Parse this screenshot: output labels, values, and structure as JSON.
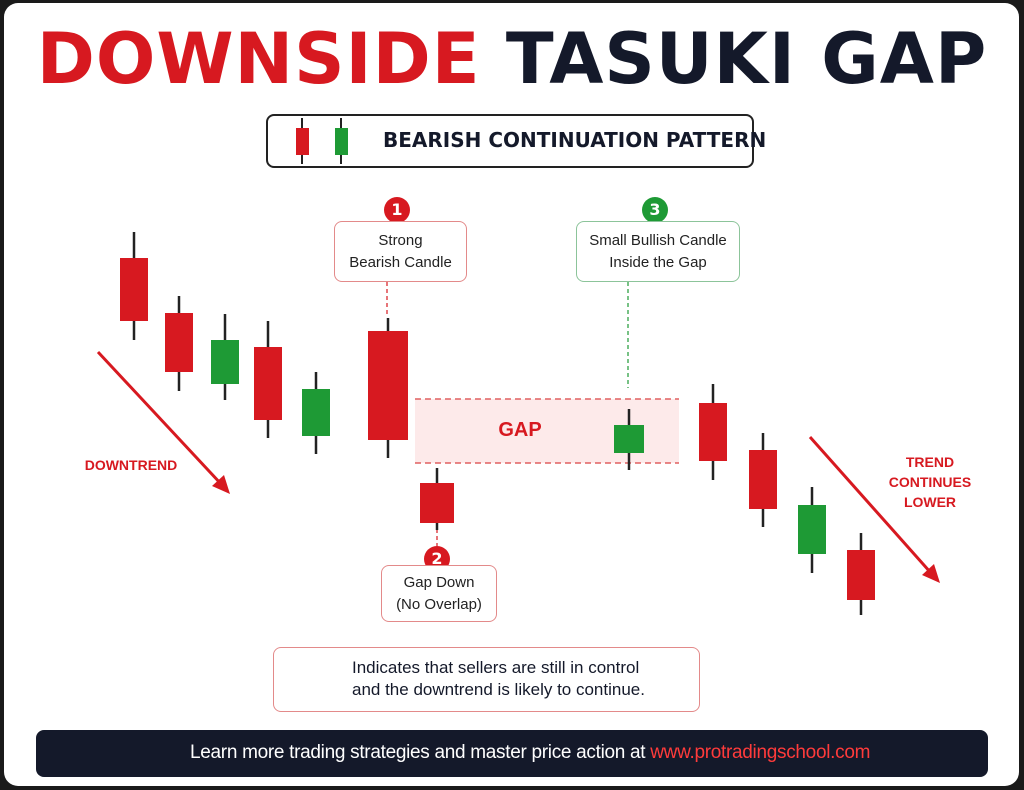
{
  "title": {
    "part1": "DOWNSIDE",
    "part2": "TASUKI GAP"
  },
  "subtitle": "BEARISH CONTINUATION PATTERN",
  "colors": {
    "bearish": "#d71920",
    "bullish": "#1e9a35",
    "dark": "#14192a",
    "gap_fill": "#fdeaea"
  },
  "callouts": [
    {
      "number": "1",
      "line1": "Strong",
      "line2": "Bearish Candle",
      "color": "red"
    },
    {
      "number": "2",
      "line1": "Gap Down",
      "line2": "(No Overlap)",
      "color": "red"
    },
    {
      "number": "3",
      "line1": "Small Bullish Candle",
      "line2": "Inside the Gap",
      "color": "green"
    }
  ],
  "labels": {
    "downtrend": "DOWNTREND",
    "trend_continues": [
      "TREND",
      "CONTINUES",
      "LOWER"
    ],
    "gap": "GAP"
  },
  "info": {
    "icon": "bear-icon",
    "line1": "Indicates that sellers are still in control",
    "line2": "and the downtrend is likely to continue."
  },
  "footer": {
    "icon": "globe-icon",
    "text": "Learn more trading strategies and master price action at ",
    "url": "www.protradingschool.com"
  }
}
